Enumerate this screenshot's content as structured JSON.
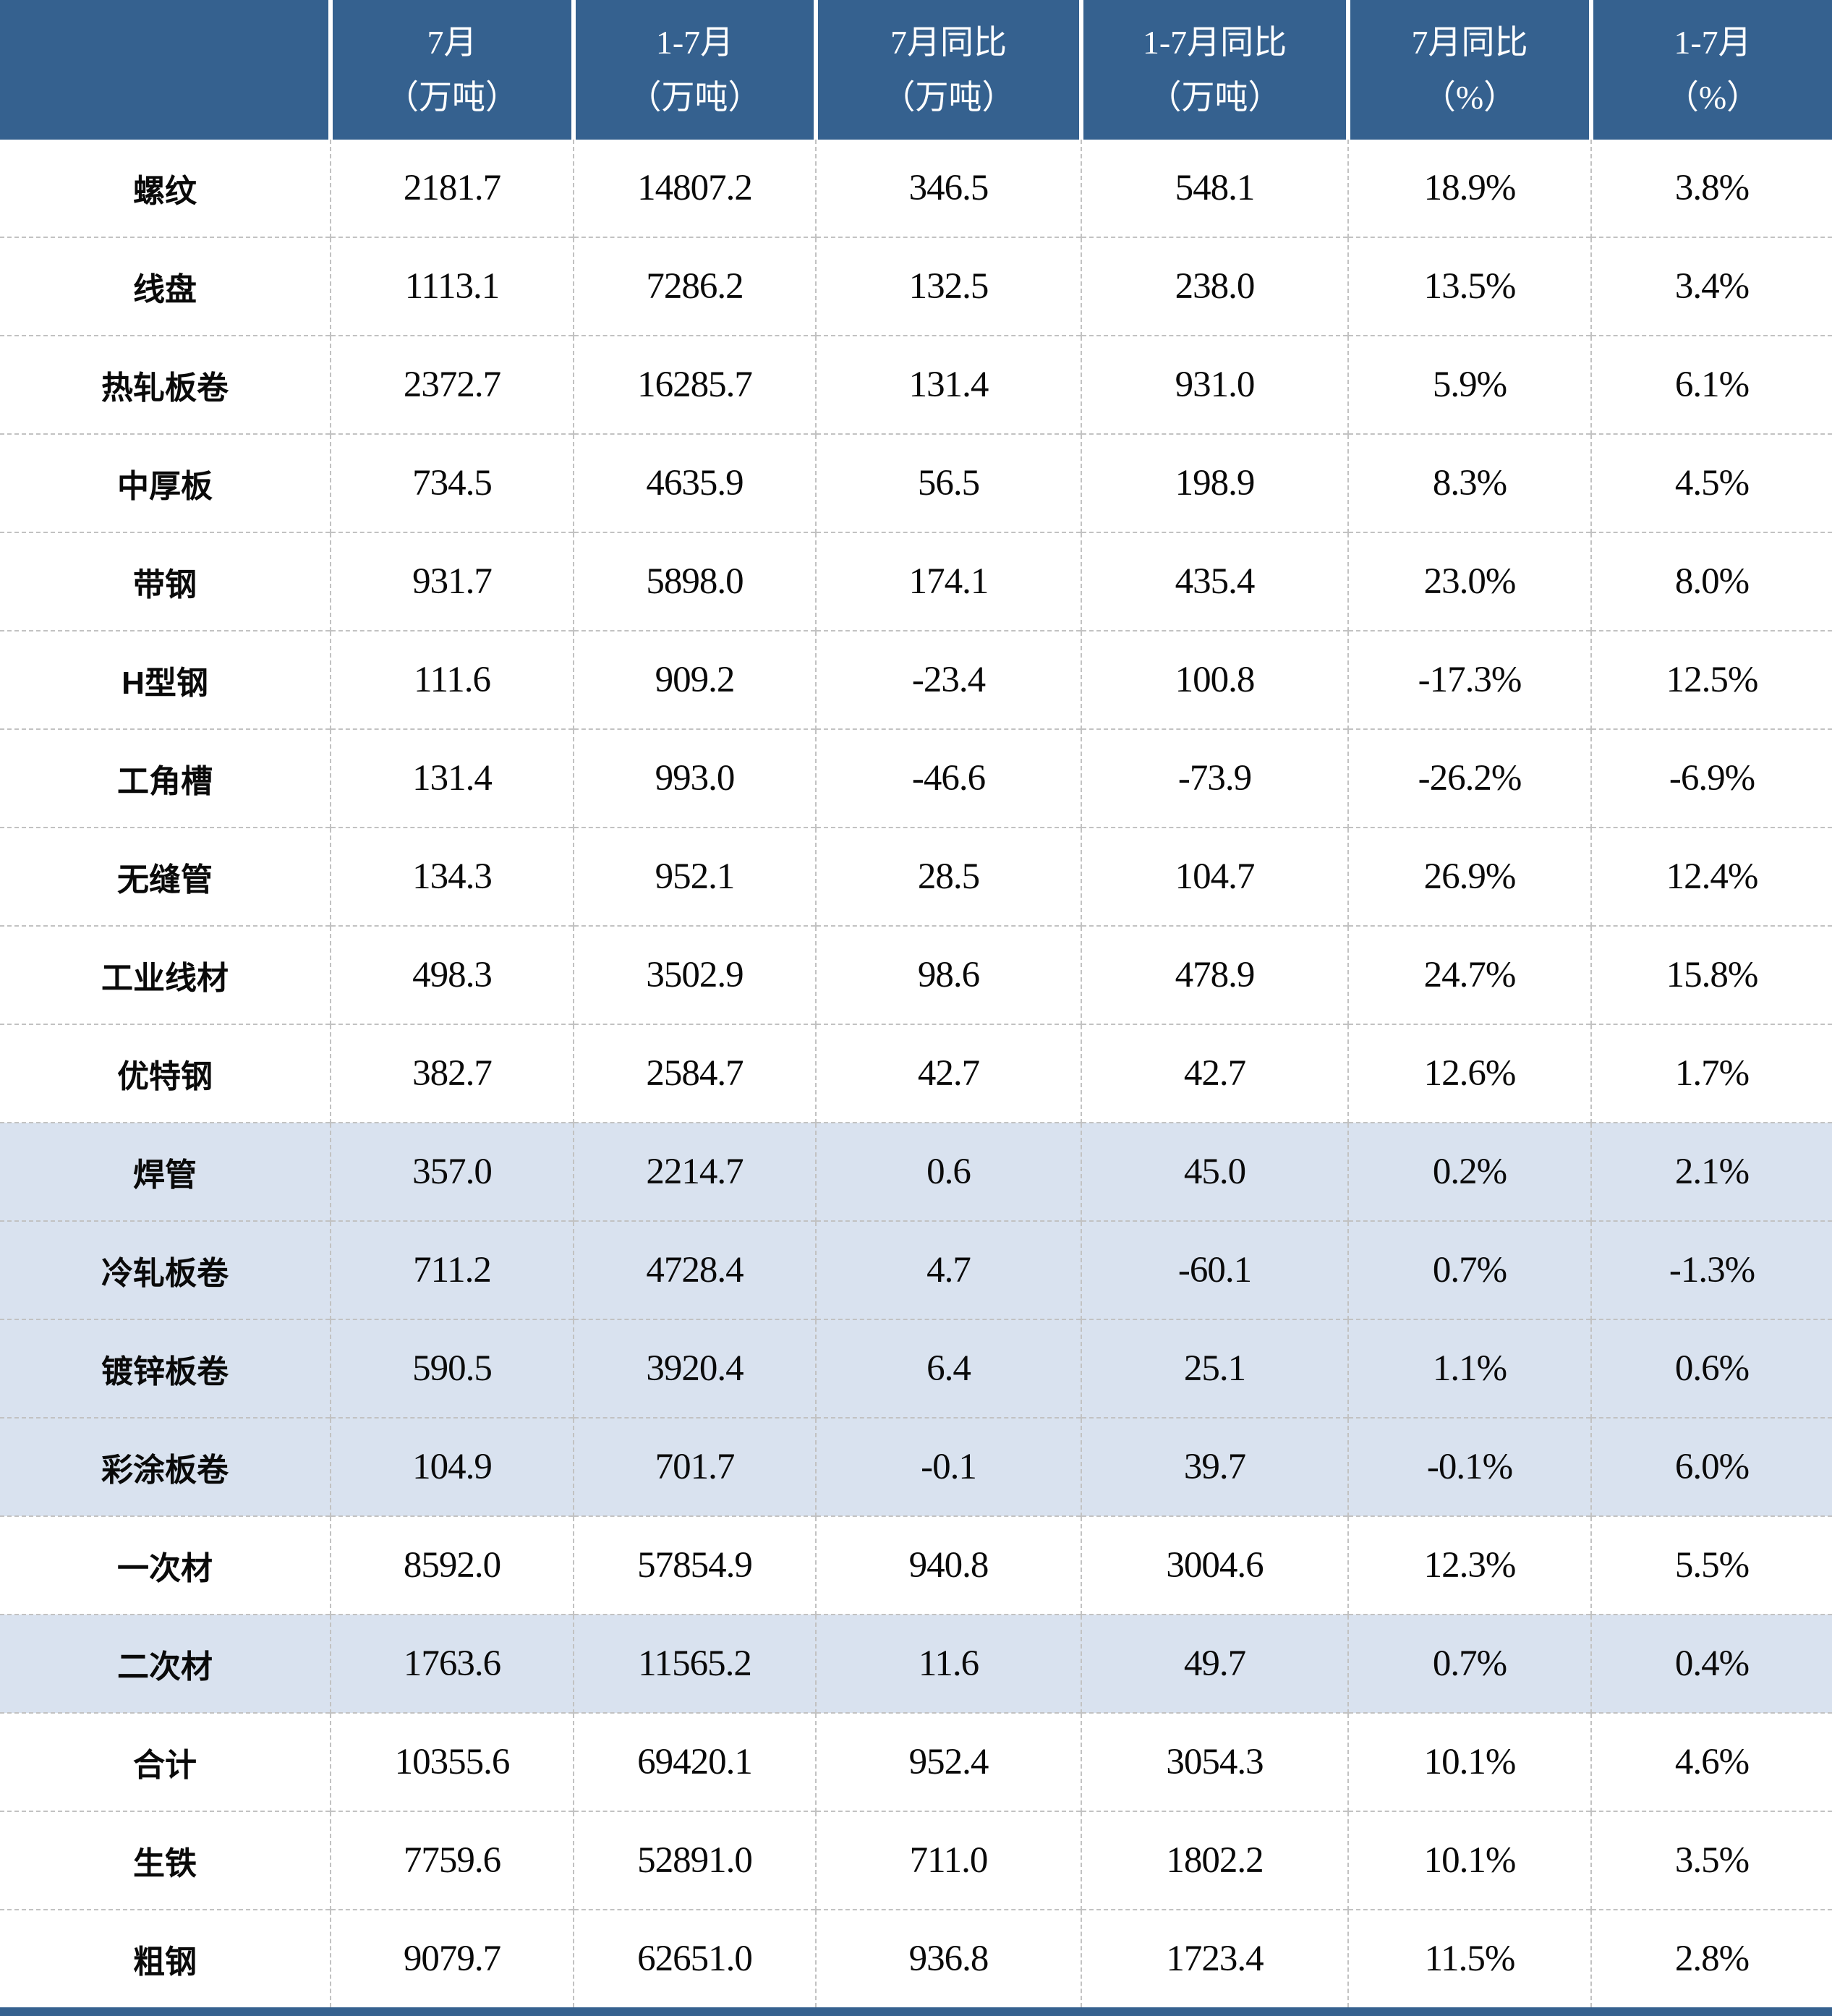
{
  "colors": {
    "header_bg": "#35618F",
    "highlight_bg": "#D9E2EF",
    "grid_line": "#C2C2C2",
    "footer_bar": "#35618F",
    "header_text": "#FFFFFF",
    "body_text": "#0A0A0A"
  },
  "chart_data": {
    "type": "table",
    "corner_label": "",
    "columns": [
      {
        "line1": "7月",
        "line2": "（万吨）"
      },
      {
        "line1": "1-7月",
        "line2": "（万吨）"
      },
      {
        "line1": "7月同比",
        "line2": "（万吨）"
      },
      {
        "line1": "1-7月同比",
        "line2": "（万吨）"
      },
      {
        "line1": "7月同比",
        "line2": "（%）"
      },
      {
        "line1": "1-7月",
        "line2": "（%）"
      }
    ],
    "rows": [
      {
        "label": "螺纹",
        "values": [
          "2181.7",
          "14807.2",
          "346.5",
          "548.1",
          "18.9%",
          "3.8%"
        ],
        "highlighted": false
      },
      {
        "label": "线盘",
        "values": [
          "1113.1",
          "7286.2",
          "132.5",
          "238.0",
          "13.5%",
          "3.4%"
        ],
        "highlighted": false
      },
      {
        "label": "热轧板卷",
        "values": [
          "2372.7",
          "16285.7",
          "131.4",
          "931.0",
          "5.9%",
          "6.1%"
        ],
        "highlighted": false
      },
      {
        "label": "中厚板",
        "values": [
          "734.5",
          "4635.9",
          "56.5",
          "198.9",
          "8.3%",
          "4.5%"
        ],
        "highlighted": false
      },
      {
        "label": "带钢",
        "values": [
          "931.7",
          "5898.0",
          "174.1",
          "435.4",
          "23.0%",
          "8.0%"
        ],
        "highlighted": false
      },
      {
        "label": "H型钢",
        "values": [
          "111.6",
          "909.2",
          "-23.4",
          "100.8",
          "-17.3%",
          "12.5%"
        ],
        "highlighted": false
      },
      {
        "label": "工角槽",
        "values": [
          "131.4",
          "993.0",
          "-46.6",
          "-73.9",
          "-26.2%",
          "-6.9%"
        ],
        "highlighted": false
      },
      {
        "label": "无缝管",
        "values": [
          "134.3",
          "952.1",
          "28.5",
          "104.7",
          "26.9%",
          "12.4%"
        ],
        "highlighted": false
      },
      {
        "label": "工业线材",
        "values": [
          "498.3",
          "3502.9",
          "98.6",
          "478.9",
          "24.7%",
          "15.8%"
        ],
        "highlighted": false
      },
      {
        "label": "优特钢",
        "values": [
          "382.7",
          "2584.7",
          "42.7",
          "42.7",
          "12.6%",
          "1.7%"
        ],
        "highlighted": false
      },
      {
        "label": "焊管",
        "values": [
          "357.0",
          "2214.7",
          "0.6",
          "45.0",
          "0.2%",
          "2.1%"
        ],
        "highlighted": true
      },
      {
        "label": "冷轧板卷",
        "values": [
          "711.2",
          "4728.4",
          "4.7",
          "-60.1",
          "0.7%",
          "-1.3%"
        ],
        "highlighted": true
      },
      {
        "label": "镀锌板卷",
        "values": [
          "590.5",
          "3920.4",
          "6.4",
          "25.1",
          "1.1%",
          "0.6%"
        ],
        "highlighted": true
      },
      {
        "label": "彩涂板卷",
        "values": [
          "104.9",
          "701.7",
          "-0.1",
          "39.7",
          "-0.1%",
          "6.0%"
        ],
        "highlighted": true
      },
      {
        "label": "一次材",
        "values": [
          "8592.0",
          "57854.9",
          "940.8",
          "3004.6",
          "12.3%",
          "5.5%"
        ],
        "highlighted": false
      },
      {
        "label": "二次材",
        "values": [
          "1763.6",
          "11565.2",
          "11.6",
          "49.7",
          "0.7%",
          "0.4%"
        ],
        "highlighted": true
      },
      {
        "label": "合计",
        "values": [
          "10355.6",
          "69420.1",
          "952.4",
          "3054.3",
          "10.1%",
          "4.6%"
        ],
        "highlighted": false
      },
      {
        "label": "生铁",
        "values": [
          "7759.6",
          "52891.0",
          "711.0",
          "1802.2",
          "10.1%",
          "3.5%"
        ],
        "highlighted": false
      },
      {
        "label": "粗钢",
        "values": [
          "9079.7",
          "62651.0",
          "936.8",
          "1723.4",
          "11.5%",
          "2.8%"
        ],
        "highlighted": false
      }
    ]
  }
}
